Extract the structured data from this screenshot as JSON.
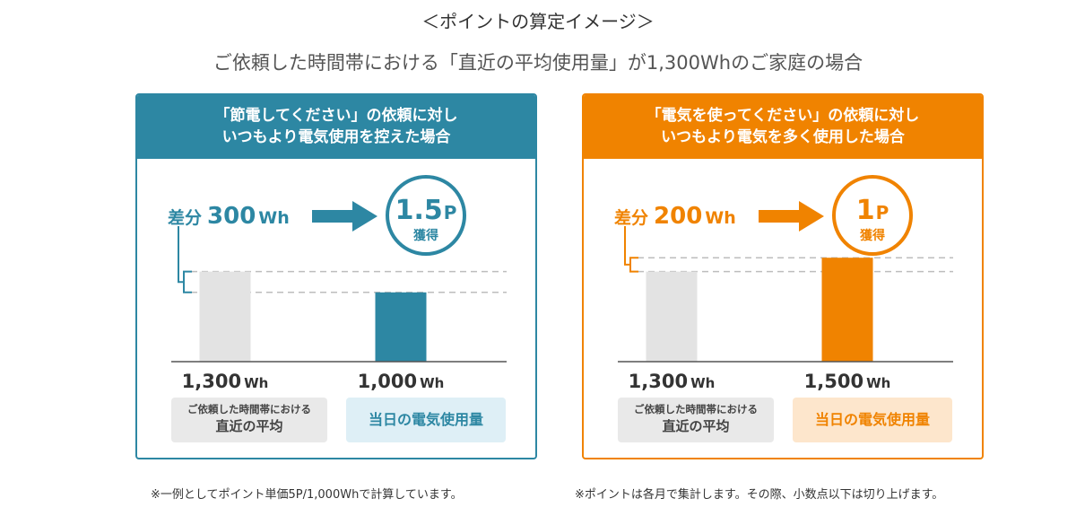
{
  "title": "＜ポイントの算定イメージ＞",
  "subtitle": "ご依頼した時間帯における「直近の平均使用量」が1,300Whのご家庭の場合",
  "colors": {
    "teal": "#2d87a3",
    "orange": "#f08300",
    "gray_bar": "#e3e3e3",
    "dashed": "#bdbdbd"
  },
  "chart_data": [
    {
      "type": "bar",
      "title": "「節電してください」の依頼に対し いつもより電気使用を控えた場合",
      "heading_lines": [
        "「節電してください」の依頼に対し",
        "いつもより電気使用を控えた場合"
      ],
      "categories": [
        "直近の平均",
        "当日の電気使用量"
      ],
      "category_labels": [
        {
          "line1": "ご依頼した時間帯における",
          "line2": "直近の平均"
        },
        {
          "line1": "当日の電気使用量"
        }
      ],
      "values": [
        1300,
        1000
      ],
      "value_labels": [
        "1,300",
        "1,000"
      ],
      "unit": "Wh",
      "ylim": [
        0,
        1600
      ],
      "difference": {
        "prefix": "差分",
        "value": "300",
        "unit": "Wh"
      },
      "points": {
        "value": "1.5",
        "unit": "P",
        "label": "獲得"
      },
      "accent": "#2d87a3"
    },
    {
      "type": "bar",
      "title": "「電気を使ってください」の依頼に対し いつもより電気を多く使用した場合",
      "heading_lines": [
        "「電気を使ってください」の依頼に対し",
        "いつもより電気を多く使用した場合"
      ],
      "categories": [
        "直近の平均",
        "当日の電気使用量"
      ],
      "category_labels": [
        {
          "line1": "ご依頼した時間帯における",
          "line2": "直近の平均"
        },
        {
          "line1": "当日の電気使用量"
        }
      ],
      "values": [
        1300,
        1500
      ],
      "value_labels": [
        "1,300",
        "1,500"
      ],
      "unit": "Wh",
      "ylim": [
        0,
        1600
      ],
      "difference": {
        "prefix": "差分",
        "value": "200",
        "unit": "Wh"
      },
      "points": {
        "value": "1",
        "unit": "P",
        "label": "獲得"
      },
      "accent": "#f08300"
    }
  ],
  "notes": [
    "※一例としてポイント単価5P/1,000Whで計算しています。",
    "※ポイントは各月で集計します。その際、小数点以下は切り上げます。"
  ]
}
